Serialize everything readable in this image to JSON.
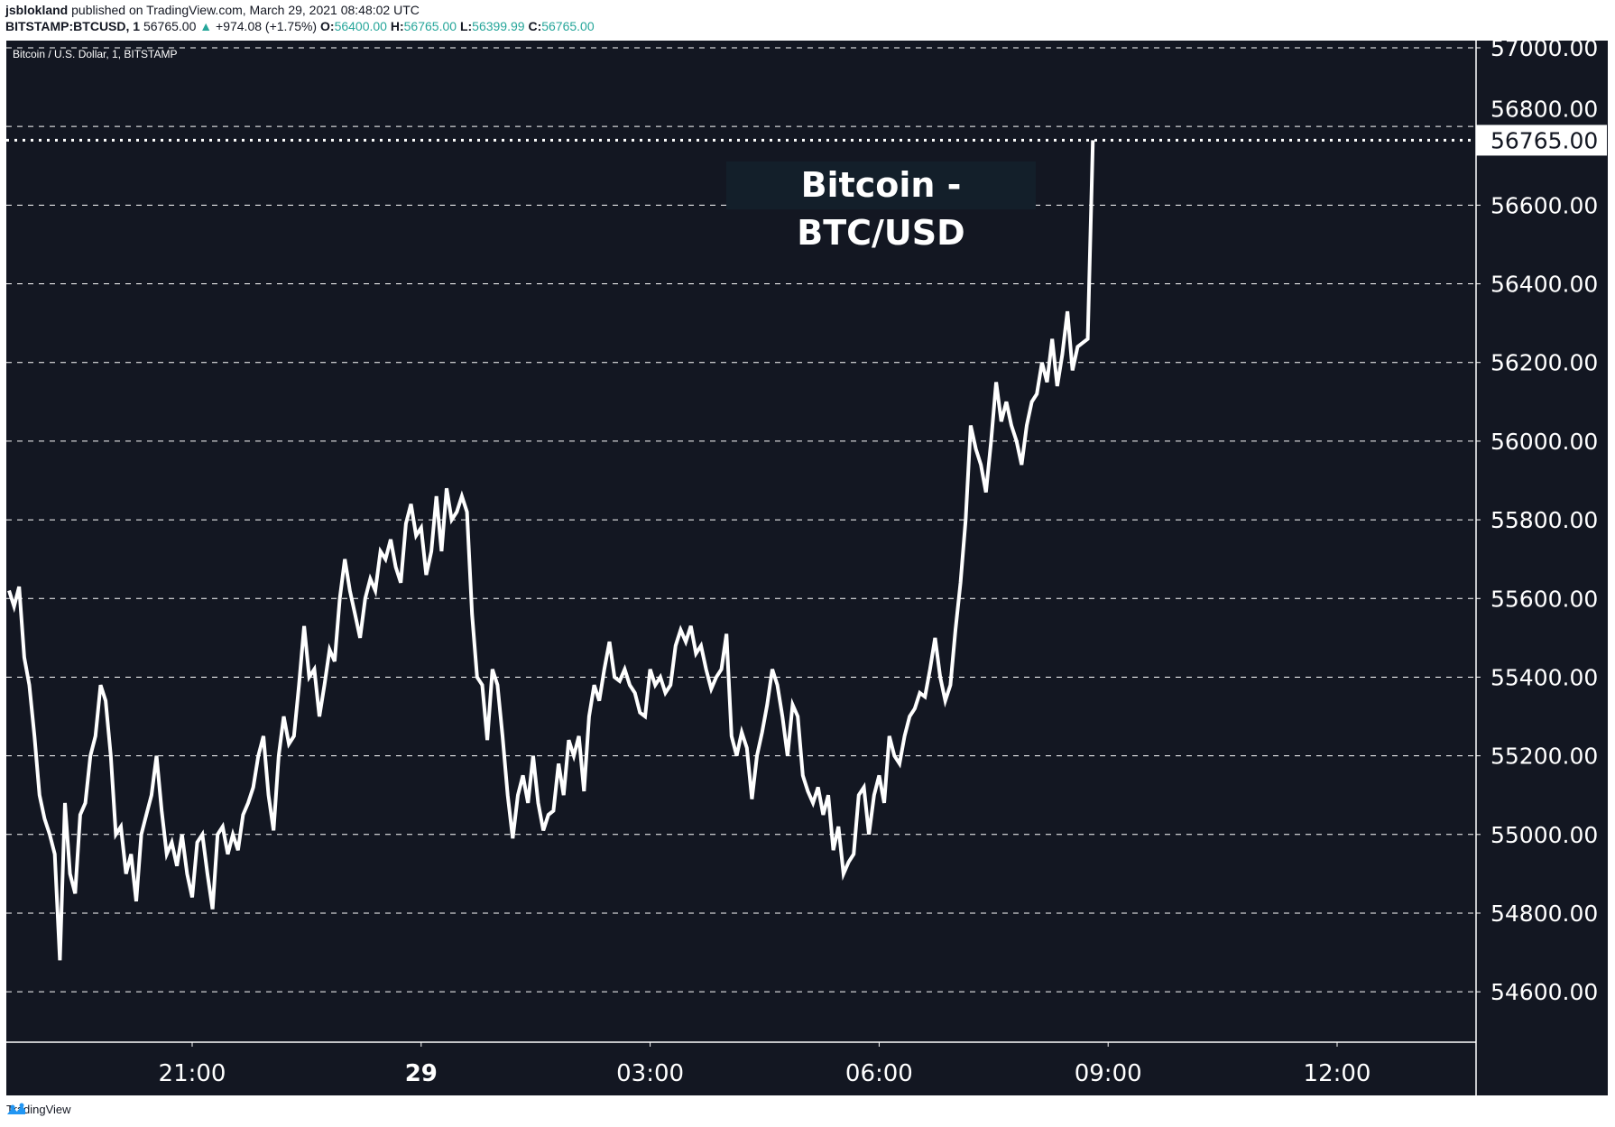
{
  "header": {
    "author": "jsblokland",
    "published": "published on TradingView.com, March 29, 2021 08:48:02 UTC",
    "symbol": "BITSTAMP:BTCUSD, 1",
    "last": "56765.00",
    "change": "+974.08 (+1.75%)",
    "o_label": "O:",
    "o": "56400.00",
    "h_label": "H:",
    "h": "56765.00",
    "l_label": "L:",
    "l": "56399.99",
    "c_label": "C:",
    "c": "56765.00",
    "up_color": "#26a69a"
  },
  "legend": "Bitcoin / U.S. Dollar, 1, BITSTAMP",
  "annotation": "Bitcoin - BTC/USD",
  "footer": {
    "brand": "TradingView",
    "logo_icon": "tradingview-cloud-icon"
  },
  "chart_data": {
    "type": "line",
    "title": "",
    "ylim": [
      54500,
      57000
    ],
    "y_ticks": [
      "57000.00",
      "56800.00",
      "56600.00",
      "56400.00",
      "56200.00",
      "56000.00",
      "55800.00",
      "55600.00",
      "55400.00",
      "55200.00",
      "55000.00",
      "54800.00",
      "54600.00"
    ],
    "x_ticks": [
      {
        "label": "21:00",
        "time": "21:00",
        "bold": false
      },
      {
        "label": "29",
        "time": "00:00",
        "bold": true
      },
      {
        "label": "03:00",
        "time": "03:00",
        "bold": false
      },
      {
        "label": "06:00",
        "time": "06:00",
        "bold": false
      },
      {
        "label": "09:00",
        "time": "09:00",
        "bold": false
      },
      {
        "label": "12:00",
        "time": "12:00",
        "bold": false
      }
    ],
    "x_range": [
      "2021-03-28 18:35",
      "2021-03-29 13:45"
    ],
    "current_price": 56765.0,
    "current_price_label": "56765.00",
    "grid": true,
    "line_color": "#ffffff",
    "background": "#131722",
    "times": [
      "18:36",
      "18:40",
      "18:44",
      "18:48",
      "18:52",
      "18:56",
      "19:00",
      "19:04",
      "19:08",
      "19:12",
      "19:16",
      "19:20",
      "19:24",
      "19:28",
      "19:32",
      "19:36",
      "19:40",
      "19:44",
      "19:48",
      "19:52",
      "19:56",
      "20:00",
      "20:04",
      "20:08",
      "20:12",
      "20:16",
      "20:20",
      "20:24",
      "20:28",
      "20:32",
      "20:36",
      "20:40",
      "20:44",
      "20:48",
      "20:52",
      "20:56",
      "21:00",
      "21:04",
      "21:08",
      "21:12",
      "21:16",
      "21:20",
      "21:24",
      "21:28",
      "21:32",
      "21:36",
      "21:40",
      "21:44",
      "21:48",
      "21:52",
      "21:56",
      "22:00",
      "22:04",
      "22:08",
      "22:12",
      "22:16",
      "22:20",
      "22:24",
      "22:28",
      "22:32",
      "22:36",
      "22:40",
      "22:44",
      "22:48",
      "22:52",
      "22:56",
      "23:00",
      "23:04",
      "23:08",
      "23:12",
      "23:16",
      "23:20",
      "23:24",
      "23:28",
      "23:32",
      "23:36",
      "23:40",
      "23:44",
      "23:48",
      "23:52",
      "23:56",
      "00:00",
      "00:04",
      "00:08",
      "00:12",
      "00:16",
      "00:20",
      "00:24",
      "00:28",
      "00:32",
      "00:36",
      "00:40",
      "00:44",
      "00:48",
      "00:52",
      "00:56",
      "01:00",
      "01:04",
      "01:08",
      "01:12",
      "01:16",
      "01:20",
      "01:24",
      "01:28",
      "01:32",
      "01:36",
      "01:40",
      "01:44",
      "01:48",
      "01:52",
      "01:56",
      "02:00",
      "02:04",
      "02:08",
      "02:12",
      "02:16",
      "02:20",
      "02:24",
      "02:28",
      "02:32",
      "02:36",
      "02:40",
      "02:44",
      "02:48",
      "02:52",
      "02:56",
      "03:00",
      "03:04",
      "03:08",
      "03:12",
      "03:16",
      "03:20",
      "03:24",
      "03:28",
      "03:32",
      "03:36",
      "03:40",
      "03:44",
      "03:48",
      "03:52",
      "03:56",
      "04:00",
      "04:04",
      "04:08",
      "04:12",
      "04:16",
      "04:20",
      "04:24",
      "04:28",
      "04:32",
      "04:36",
      "04:40",
      "04:44",
      "04:48",
      "04:52",
      "04:56",
      "05:00",
      "05:04",
      "05:08",
      "05:12",
      "05:16",
      "05:20",
      "05:24",
      "05:28",
      "05:32",
      "05:36",
      "05:40",
      "05:44",
      "05:48",
      "05:52",
      "05:56",
      "06:00",
      "06:04",
      "06:08",
      "06:12",
      "06:16",
      "06:20",
      "06:24",
      "06:28",
      "06:32",
      "06:36",
      "06:40",
      "06:44",
      "06:48",
      "06:52",
      "06:56",
      "07:00",
      "07:04",
      "07:08",
      "07:12",
      "07:16",
      "07:20",
      "07:24",
      "07:28",
      "07:32",
      "07:36",
      "07:40",
      "07:44",
      "07:48",
      "07:52",
      "07:56",
      "08:00",
      "08:04",
      "08:08",
      "08:12",
      "08:16",
      "08:20",
      "08:24",
      "08:28",
      "08:32",
      "08:36",
      "08:40",
      "08:44",
      "08:48"
    ],
    "values": [
      55620,
      55580,
      55630,
      55450,
      55380,
      55250,
      55100,
      55040,
      55000,
      54950,
      54680,
      55080,
      54900,
      54850,
      55050,
      55080,
      55200,
      55250,
      55380,
      55340,
      55200,
      55000,
      55020,
      54900,
      54950,
      54830,
      55000,
      55050,
      55100,
      55200,
      55060,
      54950,
      54980,
      54920,
      55000,
      54900,
      54840,
      54980,
      55000,
      54900,
      54810,
      55000,
      55020,
      54950,
      55000,
      54960,
      55050,
      55080,
      55120,
      55200,
      55250,
      55100,
      55010,
      55200,
      55300,
      55230,
      55250,
      55380,
      55530,
      55400,
      55420,
      55300,
      55380,
      55470,
      55440,
      55600,
      55700,
      55620,
      55560,
      55500,
      55600,
      55650,
      55620,
      55720,
      55700,
      55750,
      55680,
      55640,
      55790,
      55840,
      55760,
      55780,
      55660,
      55720,
      55860,
      55720,
      55880,
      55800,
      55820,
      55860,
      55820,
      55560,
      55400,
      55380,
      55240,
      55420,
      55380,
      55250,
      55100,
      54990,
      55100,
      55150,
      55080,
      55200,
      55080,
      55010,
      55050,
      55060,
      55180,
      55100,
      55240,
      55200,
      55250,
      55110,
      55300,
      55380,
      55340,
      55420,
      55490,
      55400,
      55390,
      55420,
      55380,
      55360,
      55310,
      55300,
      55420,
      55380,
      55400,
      55360,
      55380,
      55480,
      55520,
      55490,
      55530,
      55460,
      55480,
      55420,
      55370,
      55400,
      55420,
      55510,
      55250,
      55200,
      55260,
      55220,
      55090,
      55200,
      55260,
      55330,
      55420,
      55380,
      55300,
      55200,
      55330,
      55300,
      55150,
      55110,
      55080,
      55120,
      55050,
      55100,
      54960,
      55020,
      54900,
      54930,
      54950,
      55100,
      55120,
      55000,
      55100,
      55150,
      55080,
      55250,
      55200,
      55180,
      55250,
      55300,
      55320,
      55360,
      55350,
      55420,
      55500,
      55400,
      55340,
      55380,
      55520,
      55640,
      55800,
      56040,
      55980,
      55940,
      55870,
      56000,
      56150,
      56050,
      56100,
      56040,
      56000,
      55940,
      56040,
      56100,
      56120,
      56200,
      56150,
      56260,
      56140,
      56220,
      56330,
      56180,
      56240,
      56250,
      56260,
      56765
    ]
  }
}
